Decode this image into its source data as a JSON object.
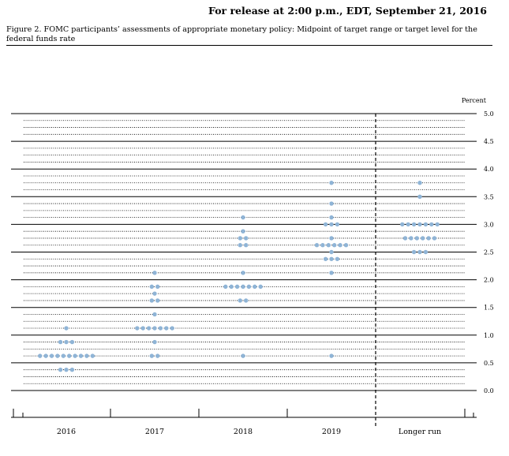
{
  "header": {
    "release": "For release at 2:00 p.m., EDT, September 21, 2016"
  },
  "figure": {
    "caption": "Figure 2. FOMC participants’ assessments of appropriate monetary policy: Midpoint of target range or target level for the federal funds rate"
  },
  "chart_data": {
    "type": "scatter",
    "title": "",
    "xlabel": "",
    "ylabel": "Percent",
    "ylim": [
      0,
      5
    ],
    "y_ticks": [
      "0.0",
      "0.5",
      "1.0",
      "1.5",
      "2.0",
      "2.5",
      "3.0",
      "3.5",
      "4.0",
      "4.5",
      "5.0"
    ],
    "categories": [
      "2016",
      "2017",
      "2018",
      "2019",
      "Longer run"
    ],
    "grid": "solid lines at half-percent and dotted lines at eighth-percent intervals",
    "dot_color": "#8fb4d6",
    "series": [
      {
        "values": [
          {
            "y": 1.125,
            "count": 1
          },
          {
            "y": 0.875,
            "count": 3
          },
          {
            "y": 0.625,
            "count": 10
          },
          {
            "y": 0.375,
            "count": 3
          }
        ]
      },
      {
        "values": [
          {
            "y": 2.125,
            "count": 1
          },
          {
            "y": 1.875,
            "count": 2
          },
          {
            "y": 1.75,
            "count": 1
          },
          {
            "y": 1.625,
            "count": 2
          },
          {
            "y": 1.375,
            "count": 1
          },
          {
            "y": 1.125,
            "count": 7
          },
          {
            "y": 0.875,
            "count": 1
          },
          {
            "y": 0.625,
            "count": 2
          }
        ]
      },
      {
        "values": [
          {
            "y": 3.125,
            "count": 1
          },
          {
            "y": 2.875,
            "count": 1
          },
          {
            "y": 2.75,
            "count": 2
          },
          {
            "y": 2.625,
            "count": 2
          },
          {
            "y": 2.125,
            "count": 1
          },
          {
            "y": 1.875,
            "count": 7
          },
          {
            "y": 1.625,
            "count": 2
          },
          {
            "y": 0.625,
            "count": 1
          }
        ]
      },
      {
        "values": [
          {
            "y": 3.75,
            "count": 1
          },
          {
            "y": 3.375,
            "count": 1
          },
          {
            "y": 3.125,
            "count": 1
          },
          {
            "y": 3.0,
            "count": 3
          },
          {
            "y": 2.75,
            "count": 1
          },
          {
            "y": 2.625,
            "count": 6
          },
          {
            "y": 2.5,
            "count": 1
          },
          {
            "y": 2.375,
            "count": 3
          },
          {
            "y": 2.125,
            "count": 1
          },
          {
            "y": 0.625,
            "count": 1
          }
        ]
      },
      {
        "values": [
          {
            "y": 3.75,
            "count": 1
          },
          {
            "y": 3.5,
            "count": 1
          },
          {
            "y": 3.0,
            "count": 7
          },
          {
            "y": 2.75,
            "count": 6
          },
          {
            "y": 2.5,
            "count": 3
          }
        ]
      }
    ]
  }
}
